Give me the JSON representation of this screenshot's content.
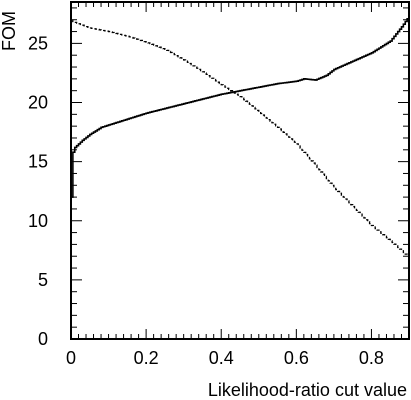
{
  "chart_data": {
    "type": "line",
    "xlabel": "Likelihood-ratio cut value",
    "ylabel": "FOM",
    "xlim": [
      0,
      0.9
    ],
    "ylim": [
      0,
      28.5
    ],
    "x_major_ticks": [
      0,
      0.2,
      0.4,
      0.6,
      0.8
    ],
    "x_tick_labels": [
      "0",
      "0.2",
      "0.4",
      "0.6",
      "0.8"
    ],
    "y_major_ticks": [
      0,
      5,
      10,
      15,
      20,
      25
    ],
    "y_tick_labels": [
      "0",
      "5",
      "10",
      "15",
      "20",
      "25"
    ],
    "x_minor_step": 0.02,
    "y_minor_step": 1,
    "grid": false,
    "legend": "none",
    "series": [
      {
        "style": "solid",
        "color": "#000000",
        "x": [
          0.0,
          0.005,
          0.01,
          0.02,
          0.03,
          0.05,
          0.08,
          0.1,
          0.15,
          0.2,
          0.25,
          0.3,
          0.35,
          0.4,
          0.45,
          0.5,
          0.55,
          0.6,
          0.62,
          0.65,
          0.68,
          0.7,
          0.75,
          0.8,
          0.85,
          0.88,
          0.9
        ],
        "y": [
          12.0,
          15.8,
          16.2,
          16.5,
          16.8,
          17.3,
          17.9,
          18.1,
          18.6,
          19.1,
          19.5,
          19.9,
          20.3,
          20.7,
          21.0,
          21.3,
          21.6,
          21.8,
          22.0,
          21.9,
          22.3,
          22.8,
          23.5,
          24.2,
          25.2,
          26.4,
          27.3
        ]
      },
      {
        "style": "dashed",
        "color": "#000000",
        "x": [
          0.0,
          0.05,
          0.1,
          0.15,
          0.2,
          0.25,
          0.3,
          0.35,
          0.4,
          0.45,
          0.5,
          0.55,
          0.6,
          0.65,
          0.7,
          0.75,
          0.8,
          0.85,
          0.9
        ],
        "y": [
          26.9,
          26.3,
          26.0,
          25.6,
          25.1,
          24.5,
          23.6,
          22.6,
          21.5,
          20.5,
          19.2,
          17.9,
          16.5,
          14.7,
          12.8,
          11.2,
          9.6,
          8.3,
          6.9
        ]
      }
    ]
  }
}
